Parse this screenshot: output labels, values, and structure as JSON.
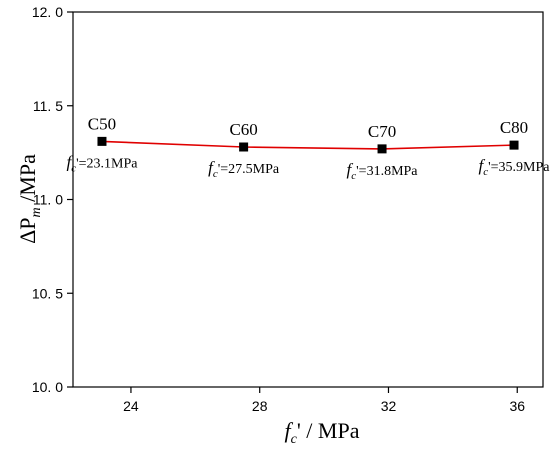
{
  "chart_data": {
    "type": "line",
    "xlabel_math": "f",
    "xlabel_math_sub": "c",
    "xlabel_rest": "' / MPa",
    "ylabel_math": "ΔP",
    "ylabel_math_sub": "m",
    "ylabel_rest": " /MPa",
    "xlim": [
      22.2,
      36.8
    ],
    "ylim": [
      10.0,
      12.0
    ],
    "xticks": [
      {
        "value": 24,
        "label": "24"
      },
      {
        "value": 28,
        "label": "28"
      },
      {
        "value": 32,
        "label": "32"
      },
      {
        "value": 36,
        "label": "36"
      }
    ],
    "yticks": [
      {
        "value": 10.0,
        "label": "10. 0"
      },
      {
        "value": 10.5,
        "label": "10. 5"
      },
      {
        "value": 11.0,
        "label": "11. 0"
      },
      {
        "value": 11.5,
        "label": "11. 5"
      },
      {
        "value": 12.0,
        "label": "12. 0"
      }
    ],
    "series": [
      {
        "color": "#e00000",
        "marker_color": "#000000",
        "points": [
          {
            "x": 23.1,
            "y": 11.31,
            "grade": "C50",
            "fc_label": "'=23.1MPa"
          },
          {
            "x": 27.5,
            "y": 11.28,
            "grade": "C60",
            "fc_label": "'=27.5MPa"
          },
          {
            "x": 31.8,
            "y": 11.27,
            "grade": "C70",
            "fc_label": "'=31.8MPa"
          },
          {
            "x": 35.9,
            "y": 11.29,
            "grade": "C80",
            "fc_label": "'=35.9MPa"
          }
        ]
      }
    ],
    "grid": false,
    "legend": "none"
  }
}
